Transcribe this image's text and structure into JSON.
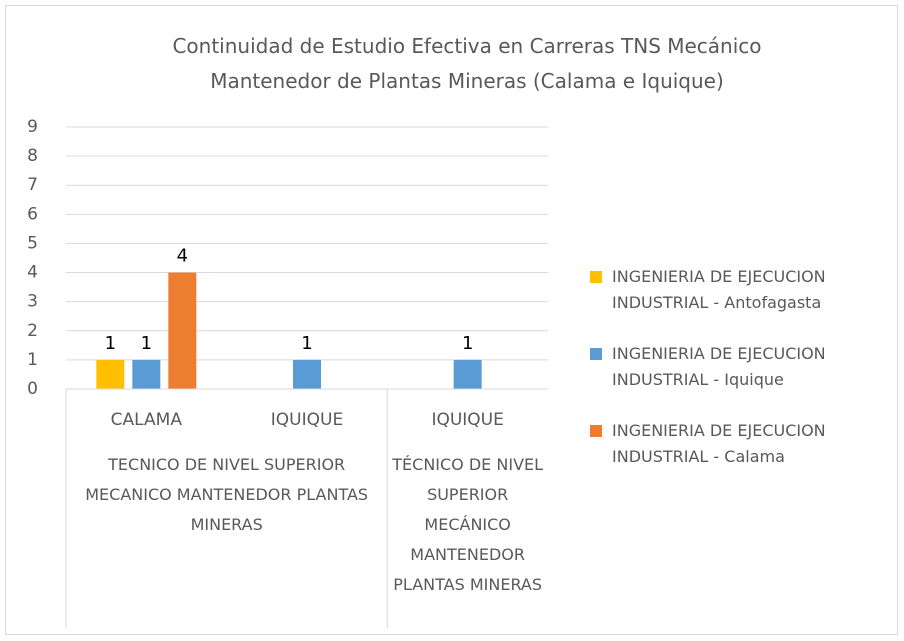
{
  "chart_data": {
    "type": "bar",
    "title": "Continuidad de Estudio Efectiva en Carreras TNS Mecánico Mantenedor de Plantas Mineras (Calama e Iquique)",
    "categories": [
      "CALAMA",
      "IQUIQUE",
      "IQUIQUE"
    ],
    "category_groups": [
      "TECNICO DE NIVEL SUPERIOR MECANICO MANTENEDOR PLANTAS MINERAS",
      null,
      "TÉCNICO DE NIVEL SUPERIOR MECÁNICO MANTENEDOR PLANTAS MINERAS"
    ],
    "series": [
      {
        "name": "INGENIERIA  DE EJECUCION INDUSTRIAL - Antofagasta",
        "color": "#ffc000",
        "values": [
          1,
          null,
          null
        ]
      },
      {
        "name": "INGENIERIA  DE EJECUCION INDUSTRIAL - Iquique",
        "color": "#5b9bd5",
        "values": [
          1,
          1,
          1
        ]
      },
      {
        "name": "INGENIERIA DE EJECUCION INDUSTRIAL - Calama",
        "color": "#ed7d31",
        "values": [
          4,
          null,
          null
        ]
      }
    ],
    "ylim": [
      0,
      9
    ],
    "yticks": [
      0,
      1,
      2,
      3,
      4,
      5,
      6,
      7,
      8,
      9
    ],
    "grid": true,
    "data_labels": true,
    "legend": "right"
  }
}
